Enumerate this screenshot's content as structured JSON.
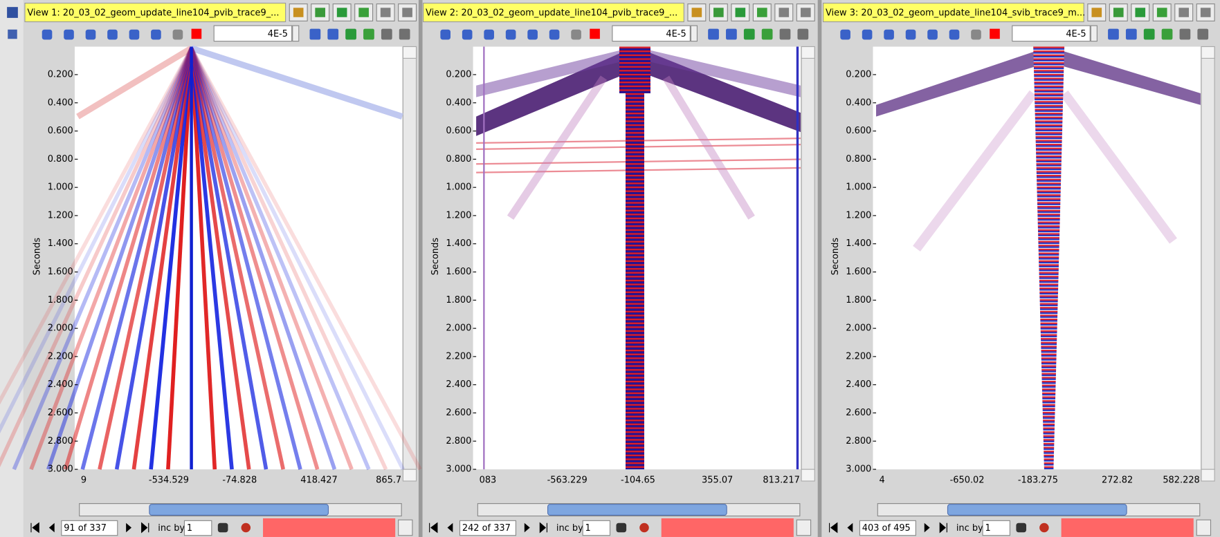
{
  "views": [
    {
      "title": "View 1: 20_03_02_geom_update_line104_pvib_trace9_...",
      "scale": "4E-5",
      "axis_label": "Seconds",
      "yticks": [
        "0.200",
        "0.400",
        "0.600",
        "0.800",
        "1.000",
        "1.200",
        "1.400",
        "1.600",
        "1.800",
        "2.000",
        "2.200",
        "2.400",
        "2.600",
        "2.800",
        "3.000"
      ],
      "xticks": [
        "9",
        "-534.529",
        "-74.828",
        "418.427",
        "865.7"
      ],
      "position": "91 of 337",
      "inc_label": "inc by",
      "inc": "1"
    },
    {
      "title": "View 2: 20_03_02_geom_update_line104_pvib_trace9_...",
      "scale": "4E-5",
      "axis_label": "Seconds",
      "yticks": [
        "0.200",
        "0.400",
        "0.600",
        "0.800",
        "1.000",
        "1.200",
        "1.400",
        "1.600",
        "1.800",
        "2.000",
        "2.200",
        "2.400",
        "2.600",
        "2.800",
        "3.000"
      ],
      "xticks": [
        "083",
        "-563.229",
        "-104.65",
        "355.07",
        "813.217"
      ],
      "position": "242 of 337",
      "inc_label": "inc by",
      "inc": "1"
    },
    {
      "title": "View 3: 20_03_02_geom_update_line104_svib_trace9_m...",
      "scale": "4E-5",
      "axis_label": "Seconds",
      "yticks": [
        "0.200",
        "0.400",
        "0.600",
        "0.800",
        "1.000",
        "1.200",
        "1.400",
        "1.600",
        "1.800",
        "2.000",
        "2.200",
        "2.400",
        "2.600",
        "2.800",
        "3.000"
      ],
      "xticks": [
        "4",
        "-650.02",
        "-183.275",
        "272.82",
        "582.228"
      ],
      "position": "403 of 495",
      "inc_label": "inc by",
      "inc": "1"
    }
  ]
}
